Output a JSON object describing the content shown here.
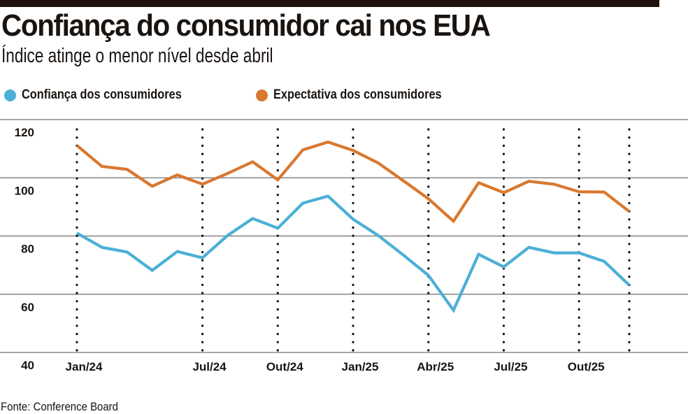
{
  "header": {
    "title": "Confiança do consumidor cai nos EUA",
    "subtitle": "Índice atinge o menor nível desde abril"
  },
  "legend": [
    {
      "label": "Confiança dos consumidores",
      "color": "#4BAFD6"
    },
    {
      "label": "Expectativa dos consumidores",
      "color": "#D9782F"
    }
  ],
  "footer": {
    "source": "Fonte: Conference Board"
  },
  "chart_data": {
    "type": "line",
    "title": "Confiança do consumidor cai nos EUA",
    "subtitle": "Índice atinge o menor nível desde abril",
    "xlabel": "",
    "ylabel": "",
    "ylim": [
      40,
      120
    ],
    "yticks": [
      120,
      100,
      80,
      60,
      40
    ],
    "grid": true,
    "legend_position": "top-left",
    "x_count": 23,
    "x_ticks": [
      {
        "index": 0,
        "label": "Jan/24"
      },
      {
        "index": 5,
        "label": "Jul/24"
      },
      {
        "index": 8,
        "label": "Out/24"
      },
      {
        "index": 11,
        "label": "Jan/25"
      },
      {
        "index": 14,
        "label": "Abr/25"
      },
      {
        "index": 17,
        "label": "Jul/25"
      },
      {
        "index": 20,
        "label": "Out/25"
      },
      {
        "index": 22,
        "label": ""
      }
    ],
    "series": [
      {
        "name": "Confiança dos consumidores",
        "color": "#4BAFD6",
        "values": [
          81.0,
          76.1,
          74.5,
          68.2,
          74.7,
          72.5,
          80.2,
          86.0,
          82.7,
          91.3,
          93.7,
          85.8,
          80.2,
          73.5,
          66.5,
          54.5,
          73.7,
          69.4,
          76.1,
          74.2,
          74.2,
          71.3,
          63.1
        ]
      },
      {
        "name": "Expectativa dos consumidores",
        "color": "#D9782F",
        "values": [
          111.1,
          103.9,
          102.9,
          97.1,
          101.0,
          97.8,
          101.5,
          105.5,
          99.3,
          109.6,
          112.3,
          109.4,
          105.1,
          99.0,
          92.8,
          85.1,
          98.3,
          94.9,
          98.8,
          97.8,
          95.2,
          95.1,
          88.4
        ]
      }
    ]
  }
}
